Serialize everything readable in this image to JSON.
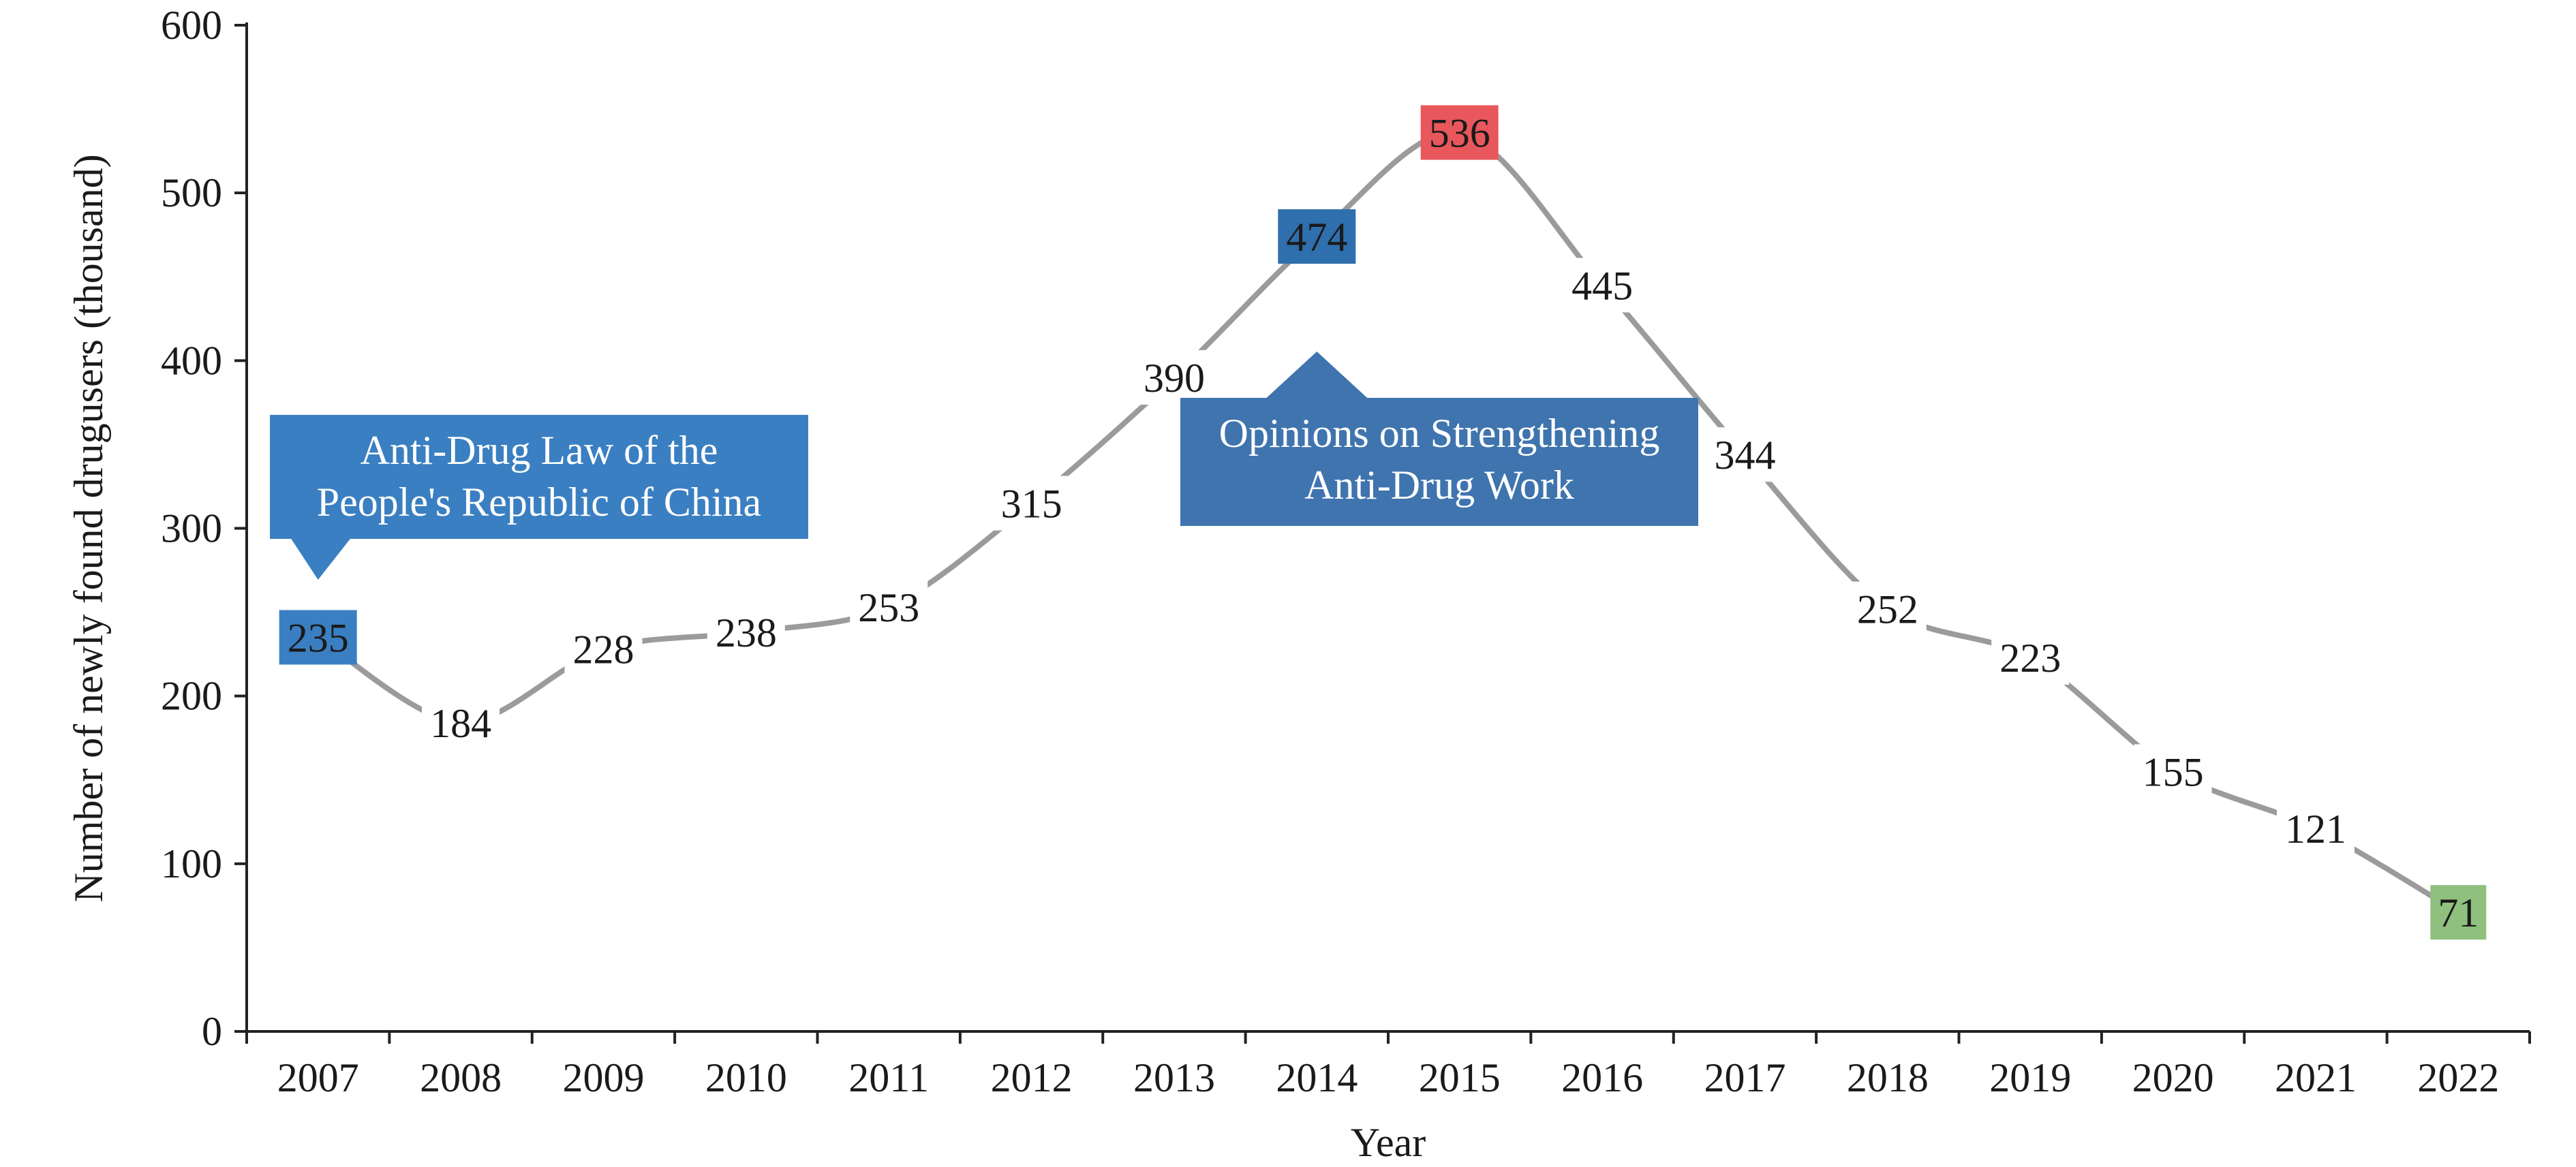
{
  "chart_data": {
    "type": "line",
    "title": "",
    "xlabel": "Year",
    "ylabel": "Number of newly found drugusers (thousand)",
    "ylim": [
      0,
      600
    ],
    "yticks": [
      "0",
      "100",
      "200",
      "300",
      "400",
      "500",
      "600"
    ],
    "categories": [
      "2007",
      "2008",
      "2009",
      "2010",
      "2011",
      "2012",
      "2013",
      "2014",
      "2015",
      "2016",
      "2017",
      "2018",
      "2019",
      "2020",
      "2021",
      "2022"
    ],
    "values": [
      235,
      184,
      228,
      238,
      253,
      315,
      390,
      474,
      536,
      445,
      344,
      252,
      223,
      155,
      121,
      71
    ],
    "data_labels": [
      "235",
      "184",
      "228",
      "238",
      "253",
      "315",
      "390",
      "474",
      "536",
      "445",
      "344",
      "252",
      "223",
      "155",
      "121",
      "71"
    ],
    "grid": false,
    "legend": "none",
    "line_color": "#9b9b9b",
    "highlighted_points": [
      {
        "category": "2007",
        "color": "#3a7fc1"
      },
      {
        "category": "2014",
        "color": "#2f6fad"
      },
      {
        "category": "2015",
        "color": "#e8575c"
      },
      {
        "category": "2022",
        "color": "#8fc07e"
      }
    ],
    "annotations": [
      {
        "category": "2007",
        "lines": [
          "Anti-Drug Law of the",
          "People's Republic of China"
        ],
        "color": "#3a7fc1",
        "pointer": "down"
      },
      {
        "category": "2014",
        "lines": [
          "Opinions on Strengthening",
          "Anti-Drug Work"
        ],
        "color": "#3f74ae",
        "pointer": "up"
      }
    ]
  }
}
